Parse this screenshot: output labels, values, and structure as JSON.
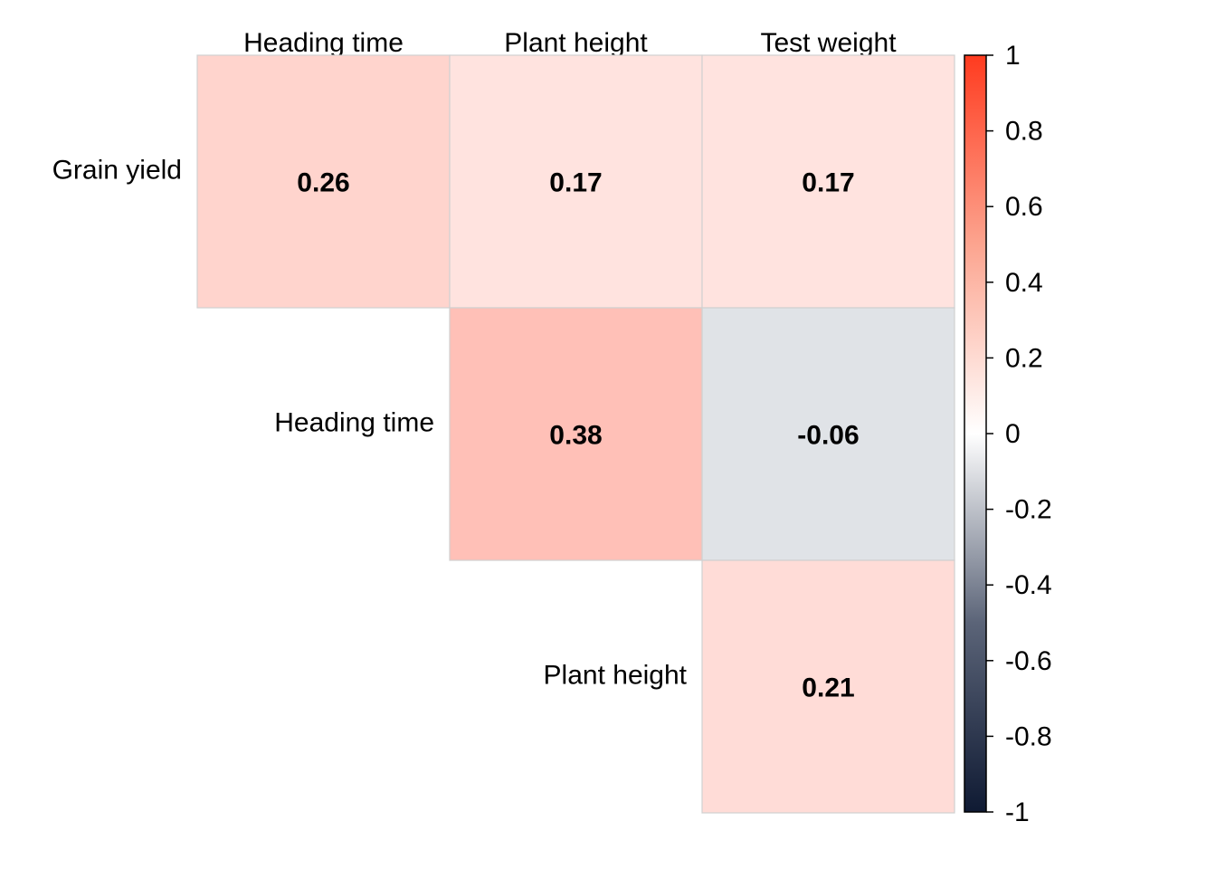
{
  "chart_data": {
    "type": "heatmap",
    "title": "",
    "columns": [
      "Heading time",
      "Plant height",
      "Test weight"
    ],
    "rows": [
      "Grain yield",
      "Heading time",
      "Plant height"
    ],
    "cells": [
      {
        "row": "Grain yield",
        "col": "Heading time",
        "value": 0.26,
        "label": "0.26"
      },
      {
        "row": "Grain yield",
        "col": "Plant height",
        "value": 0.17,
        "label": "0.17"
      },
      {
        "row": "Grain yield",
        "col": "Test weight",
        "value": 0.17,
        "label": "0.17"
      },
      {
        "row": "Heading time",
        "col": "Plant height",
        "value": 0.38,
        "label": "0.38"
      },
      {
        "row": "Heading time",
        "col": "Test weight",
        "value": -0.06,
        "label": "-0.06"
      },
      {
        "row": "Plant height",
        "col": "Test weight",
        "value": 0.21,
        "label": "0.21"
      }
    ],
    "layout": "upper-triangle",
    "grid": false,
    "colorbar": {
      "range": [
        -1,
        1
      ],
      "ticks": [
        1,
        0.8,
        0.6,
        0.4,
        0.2,
        0,
        -0.2,
        -0.4,
        -0.6,
        -0.8,
        -1
      ],
      "tick_labels": [
        "1",
        "0.8",
        "0.6",
        "0.4",
        "0.2",
        "0",
        "-0.2",
        "-0.4",
        "-0.6",
        "-0.8",
        "-1"
      ],
      "placement": "right",
      "colors": {
        "negative_end": "#0f1a33",
        "neutral": "#ffffff",
        "positive_end": "#ff3b1f"
      }
    }
  }
}
